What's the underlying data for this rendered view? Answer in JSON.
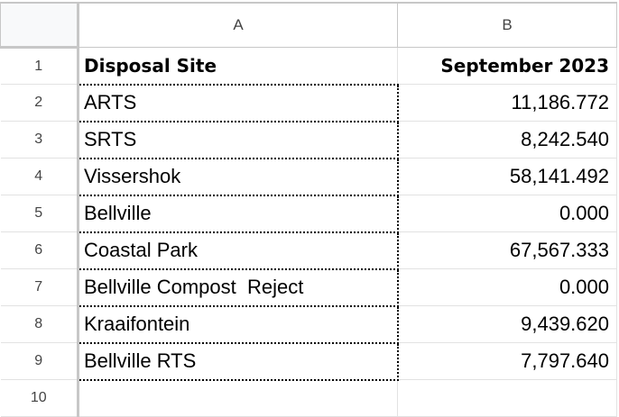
{
  "columns": [
    "A",
    "B"
  ],
  "rows": [
    {
      "num": "1",
      "a": "Disposal Site",
      "b": "September 2023"
    },
    {
      "num": "2",
      "a": "ARTS",
      "b": "11,186.772"
    },
    {
      "num": "3",
      "a": "SRTS",
      "b": "8,242.540"
    },
    {
      "num": "4",
      "a": "Vissershok",
      "b": "58,141.492"
    },
    {
      "num": "5",
      "a": "Bellville",
      "b": "0.000"
    },
    {
      "num": "6",
      "a": "Coastal Park",
      "b": "67,567.333"
    },
    {
      "num": "7",
      "a": "Bellville Compost  Reject",
      "b": "0.000"
    },
    {
      "num": "8",
      "a": "Kraaifontein",
      "b": "9,439.620"
    },
    {
      "num": "9",
      "a": "Bellville RTS",
      "b": "7,797.640"
    },
    {
      "num": "10",
      "a": "",
      "b": ""
    }
  ]
}
